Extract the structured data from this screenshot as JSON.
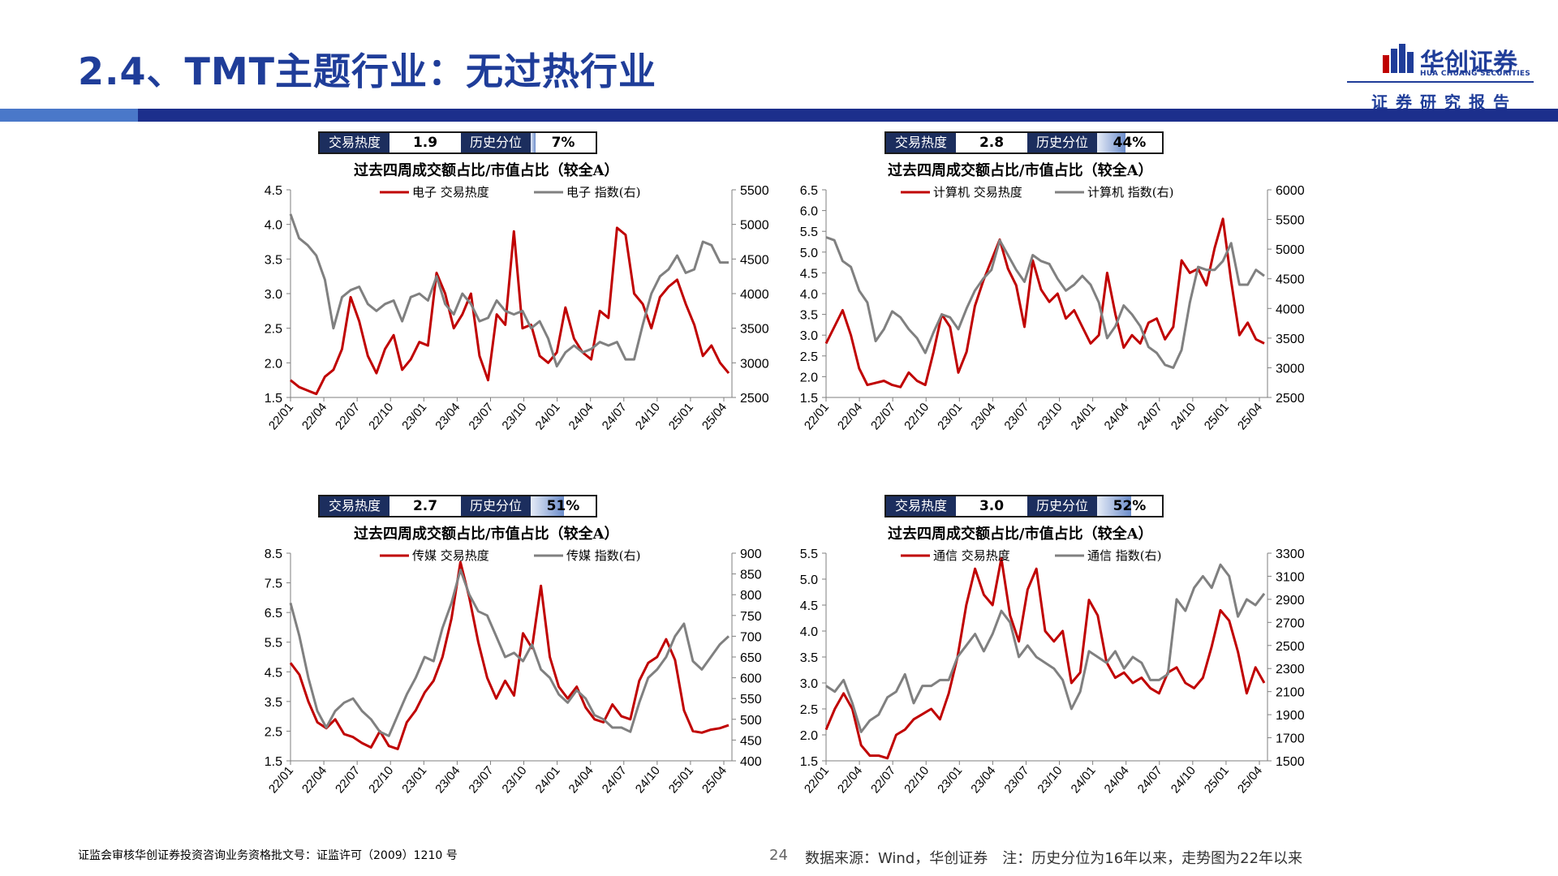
{
  "page_title": "2.4、TMT主题行业：无过热行业",
  "logo": {
    "cn": "华创证券",
    "en": "HUA CHUANG SECURITIES",
    "sub": "证券研究报告"
  },
  "footer": {
    "left": "证监会审核华创证券投资咨询业务资格批文号：证监许可（2009）1210 号",
    "page": "24",
    "source": "数据来源：Wind，华创证券　注：历史分位为16年以来，走势图为22年以来"
  },
  "heat_label": "交易热度",
  "pct_label": "历史分位",
  "colors": {
    "heat_line": "#c00000",
    "index_line": "#808080"
  },
  "panels": [
    {
      "id": "electronics",
      "heat": "1.9",
      "pct": "7%",
      "pct_value": 0.07,
      "legend_heat": "电子 交易热度",
      "legend_index": "电子 指数(右)"
    },
    {
      "id": "computer",
      "heat": "2.8",
      "pct": "44%",
      "pct_value": 0.44,
      "legend_heat": "计算机 交易热度",
      "legend_index": "计算机 指数(右)"
    },
    {
      "id": "media",
      "heat": "2.7",
      "pct": "51%",
      "pct_value": 0.51,
      "legend_heat": "传媒 交易热度",
      "legend_index": "传媒 指数(右)"
    },
    {
      "id": "telecom",
      "heat": "3.0",
      "pct": "52%",
      "pct_value": 0.52,
      "legend_heat": "通信 交易热度",
      "legend_index": "通信 指数(右)"
    }
  ],
  "chart_data": [
    {
      "type": "line",
      "title": "过去四周成交额占比/市值占比（较全A）",
      "x_ticks": [
        "22/01",
        "22/04",
        "22/07",
        "22/10",
        "23/01",
        "23/04",
        "23/07",
        "23/10",
        "24/01",
        "24/04",
        "24/07",
        "24/10",
        "25/01",
        "25/04"
      ],
      "y_left_ticks": [
        "4.5",
        "4.0",
        "3.5",
        "3.0",
        "2.5",
        "2.0",
        "1.5"
      ],
      "y_right_ticks": [
        "5500",
        "5000",
        "4500",
        "4000",
        "3500",
        "3000",
        "2500"
      ],
      "ylim_left": [
        1.5,
        4.5
      ],
      "ylim_right": [
        2500,
        5500
      ],
      "series": [
        {
          "name": "电子 交易热度",
          "axis": "left",
          "values": [
            1.75,
            1.65,
            1.6,
            1.55,
            1.8,
            1.9,
            2.2,
            2.95,
            2.6,
            2.1,
            1.85,
            2.2,
            2.4,
            1.9,
            2.05,
            2.3,
            2.25,
            3.3,
            3.0,
            2.5,
            2.7,
            3.0,
            2.1,
            1.75,
            2.7,
            2.55,
            3.9,
            2.5,
            2.55,
            2.1,
            2.0,
            2.15,
            2.8,
            2.35,
            2.15,
            2.05,
            2.75,
            2.65,
            3.95,
            3.85,
            3.0,
            2.85,
            2.5,
            2.95,
            3.1,
            3.2,
            2.85,
            2.55,
            2.1,
            2.25,
            2.0,
            1.85
          ]
        },
        {
          "name": "电子 指数(右)",
          "axis": "right",
          "values": [
            5150,
            4800,
            4700,
            4550,
            4200,
            3500,
            3950,
            4050,
            4100,
            3850,
            3750,
            3850,
            3900,
            3600,
            3950,
            4000,
            3900,
            4250,
            3850,
            3700,
            4000,
            3850,
            3600,
            3650,
            3900,
            3750,
            3700,
            3750,
            3500,
            3600,
            3350,
            2950,
            3150,
            3250,
            3150,
            3200,
            3300,
            3250,
            3300,
            3050,
            3050,
            3550,
            4000,
            4250,
            4350,
            4550,
            4300,
            4350,
            4750,
            4700,
            4450,
            4450
          ]
        }
      ]
    },
    {
      "type": "line",
      "title": "过去四周成交额占比/市值占比（较全A）",
      "x_ticks": [
        "22/01",
        "22/04",
        "22/07",
        "22/10",
        "23/01",
        "23/04",
        "23/07",
        "23/10",
        "24/01",
        "24/04",
        "24/07",
        "24/10",
        "25/01",
        "25/04"
      ],
      "y_left_ticks": [
        "6.5",
        "6.0",
        "5.5",
        "5.0",
        "4.5",
        "4.0",
        "3.5",
        "3.0",
        "2.5",
        "2.0",
        "1.5"
      ],
      "y_right_ticks": [
        "6000",
        "5500",
        "5000",
        "4500",
        "4000",
        "3500",
        "3000",
        "2500"
      ],
      "ylim_left": [
        1.5,
        6.5
      ],
      "ylim_right": [
        2500,
        6000
      ],
      "series": [
        {
          "name": "计算机 交易热度",
          "axis": "left",
          "values": [
            2.8,
            3.2,
            3.6,
            3.0,
            2.2,
            1.8,
            1.85,
            1.9,
            1.8,
            1.75,
            2.1,
            1.9,
            1.8,
            2.6,
            3.5,
            3.2,
            2.1,
            2.6,
            3.7,
            4.3,
            4.8,
            5.3,
            4.6,
            4.2,
            3.2,
            4.8,
            4.1,
            3.8,
            4.0,
            3.4,
            3.6,
            3.2,
            2.8,
            3.0,
            4.5,
            3.5,
            2.7,
            3.0,
            2.8,
            3.3,
            3.4,
            2.9,
            3.2,
            4.8,
            4.5,
            4.6,
            4.2,
            5.1,
            5.8,
            4.3,
            3.0,
            3.3,
            2.9,
            2.8
          ]
        },
        {
          "name": "计算机 指数(右)",
          "axis": "right",
          "values": [
            5200,
            5150,
            4800,
            4700,
            4300,
            4100,
            3450,
            3650,
            3950,
            3850,
            3650,
            3500,
            3250,
            3600,
            3900,
            3850,
            3650,
            4000,
            4300,
            4500,
            4650,
            5150,
            4900,
            4650,
            4450,
            4900,
            4800,
            4750,
            4500,
            4300,
            4400,
            4550,
            4400,
            4100,
            3500,
            3700,
            4050,
            3900,
            3700,
            3350,
            3250,
            3050,
            3000,
            3300,
            4100,
            4700,
            4650,
            4650,
            4800,
            5100,
            4400,
            4400,
            4650,
            4550
          ]
        }
      ]
    },
    {
      "type": "line",
      "title": "过去四周成交额占比/市值占比（较全A）",
      "x_ticks": [
        "22/01",
        "22/04",
        "22/07",
        "22/10",
        "23/01",
        "23/04",
        "23/07",
        "23/10",
        "24/01",
        "24/04",
        "24/07",
        "24/10",
        "25/01",
        "25/04"
      ],
      "y_left_ticks": [
        "8.5",
        "7.5",
        "6.5",
        "5.5",
        "4.5",
        "3.5",
        "2.5",
        "1.5"
      ],
      "y_right_ticks": [
        "900",
        "850",
        "800",
        "750",
        "700",
        "650",
        "600",
        "550",
        "500",
        "450",
        "400"
      ],
      "ylim_left": [
        1.5,
        8.5
      ],
      "ylim_right": [
        400,
        900
      ],
      "series": [
        {
          "name": "传媒 交易热度",
          "axis": "left",
          "values": [
            4.8,
            4.4,
            3.5,
            2.8,
            2.6,
            2.9,
            2.4,
            2.3,
            2.1,
            1.95,
            2.5,
            2.0,
            1.9,
            2.8,
            3.2,
            3.8,
            4.2,
            5.0,
            6.3,
            8.2,
            7.0,
            5.5,
            4.3,
            3.6,
            4.2,
            3.7,
            5.8,
            5.3,
            7.4,
            5.0,
            4.0,
            3.6,
            4.0,
            3.3,
            2.9,
            2.8,
            3.4,
            3.0,
            2.9,
            4.2,
            4.8,
            5.0,
            5.6,
            4.9,
            3.2,
            2.5,
            2.45,
            2.55,
            2.6,
            2.7
          ]
        },
        {
          "name": "传媒 指数(右)",
          "axis": "right",
          "values": [
            780,
            700,
            600,
            520,
            480,
            520,
            540,
            550,
            520,
            500,
            470,
            460,
            510,
            560,
            600,
            650,
            640,
            720,
            780,
            860,
            800,
            760,
            750,
            700,
            650,
            660,
            640,
            680,
            620,
            600,
            560,
            540,
            570,
            550,
            510,
            500,
            480,
            480,
            470,
            540,
            600,
            620,
            650,
            700,
            730,
            640,
            620,
            650,
            680,
            700
          ]
        }
      ]
    },
    {
      "type": "line",
      "title": "过去四周成交额占比/市值占比（较全A）",
      "x_ticks": [
        "22/01",
        "22/04",
        "22/07",
        "22/10",
        "23/01",
        "23/04",
        "23/07",
        "23/10",
        "24/01",
        "24/04",
        "24/07",
        "24/10",
        "25/01",
        "25/04"
      ],
      "y_left_ticks": [
        "5.5",
        "5.0",
        "4.5",
        "4.0",
        "3.5",
        "3.0",
        "2.5",
        "2.0",
        "1.5"
      ],
      "y_right_ticks": [
        "3300",
        "3100",
        "2900",
        "2700",
        "2500",
        "2300",
        "2100",
        "1900",
        "1700",
        "1500"
      ],
      "ylim_left": [
        1.5,
        5.5
      ],
      "ylim_right": [
        1500,
        3300
      ],
      "series": [
        {
          "name": "通信 交易热度",
          "axis": "left",
          "values": [
            2.1,
            2.5,
            2.8,
            2.5,
            1.8,
            1.6,
            1.6,
            1.55,
            2.0,
            2.1,
            2.3,
            2.4,
            2.5,
            2.3,
            2.8,
            3.5,
            4.5,
            5.2,
            4.7,
            4.5,
            5.4,
            4.3,
            3.8,
            4.8,
            5.2,
            4.0,
            3.8,
            4.0,
            3.0,
            3.2,
            4.6,
            4.3,
            3.4,
            3.1,
            3.2,
            3.0,
            3.1,
            2.9,
            2.8,
            3.2,
            3.3,
            3.0,
            2.9,
            3.1,
            3.7,
            4.4,
            4.2,
            3.6,
            2.8,
            3.3,
            3.0
          ]
        },
        {
          "name": "通信 指数(右)",
          "axis": "right",
          "values": [
            2150,
            2100,
            2200,
            2000,
            1750,
            1850,
            1900,
            2050,
            2100,
            2250,
            2000,
            2150,
            2150,
            2200,
            2200,
            2400,
            2500,
            2600,
            2450,
            2600,
            2800,
            2700,
            2400,
            2500,
            2400,
            2350,
            2300,
            2200,
            1950,
            2100,
            2450,
            2400,
            2350,
            2450,
            2300,
            2400,
            2350,
            2200,
            2200,
            2250,
            2900,
            2800,
            3000,
            3100,
            3000,
            3200,
            3100,
            2750,
            2900,
            2850,
            2950
          ]
        }
      ]
    }
  ]
}
